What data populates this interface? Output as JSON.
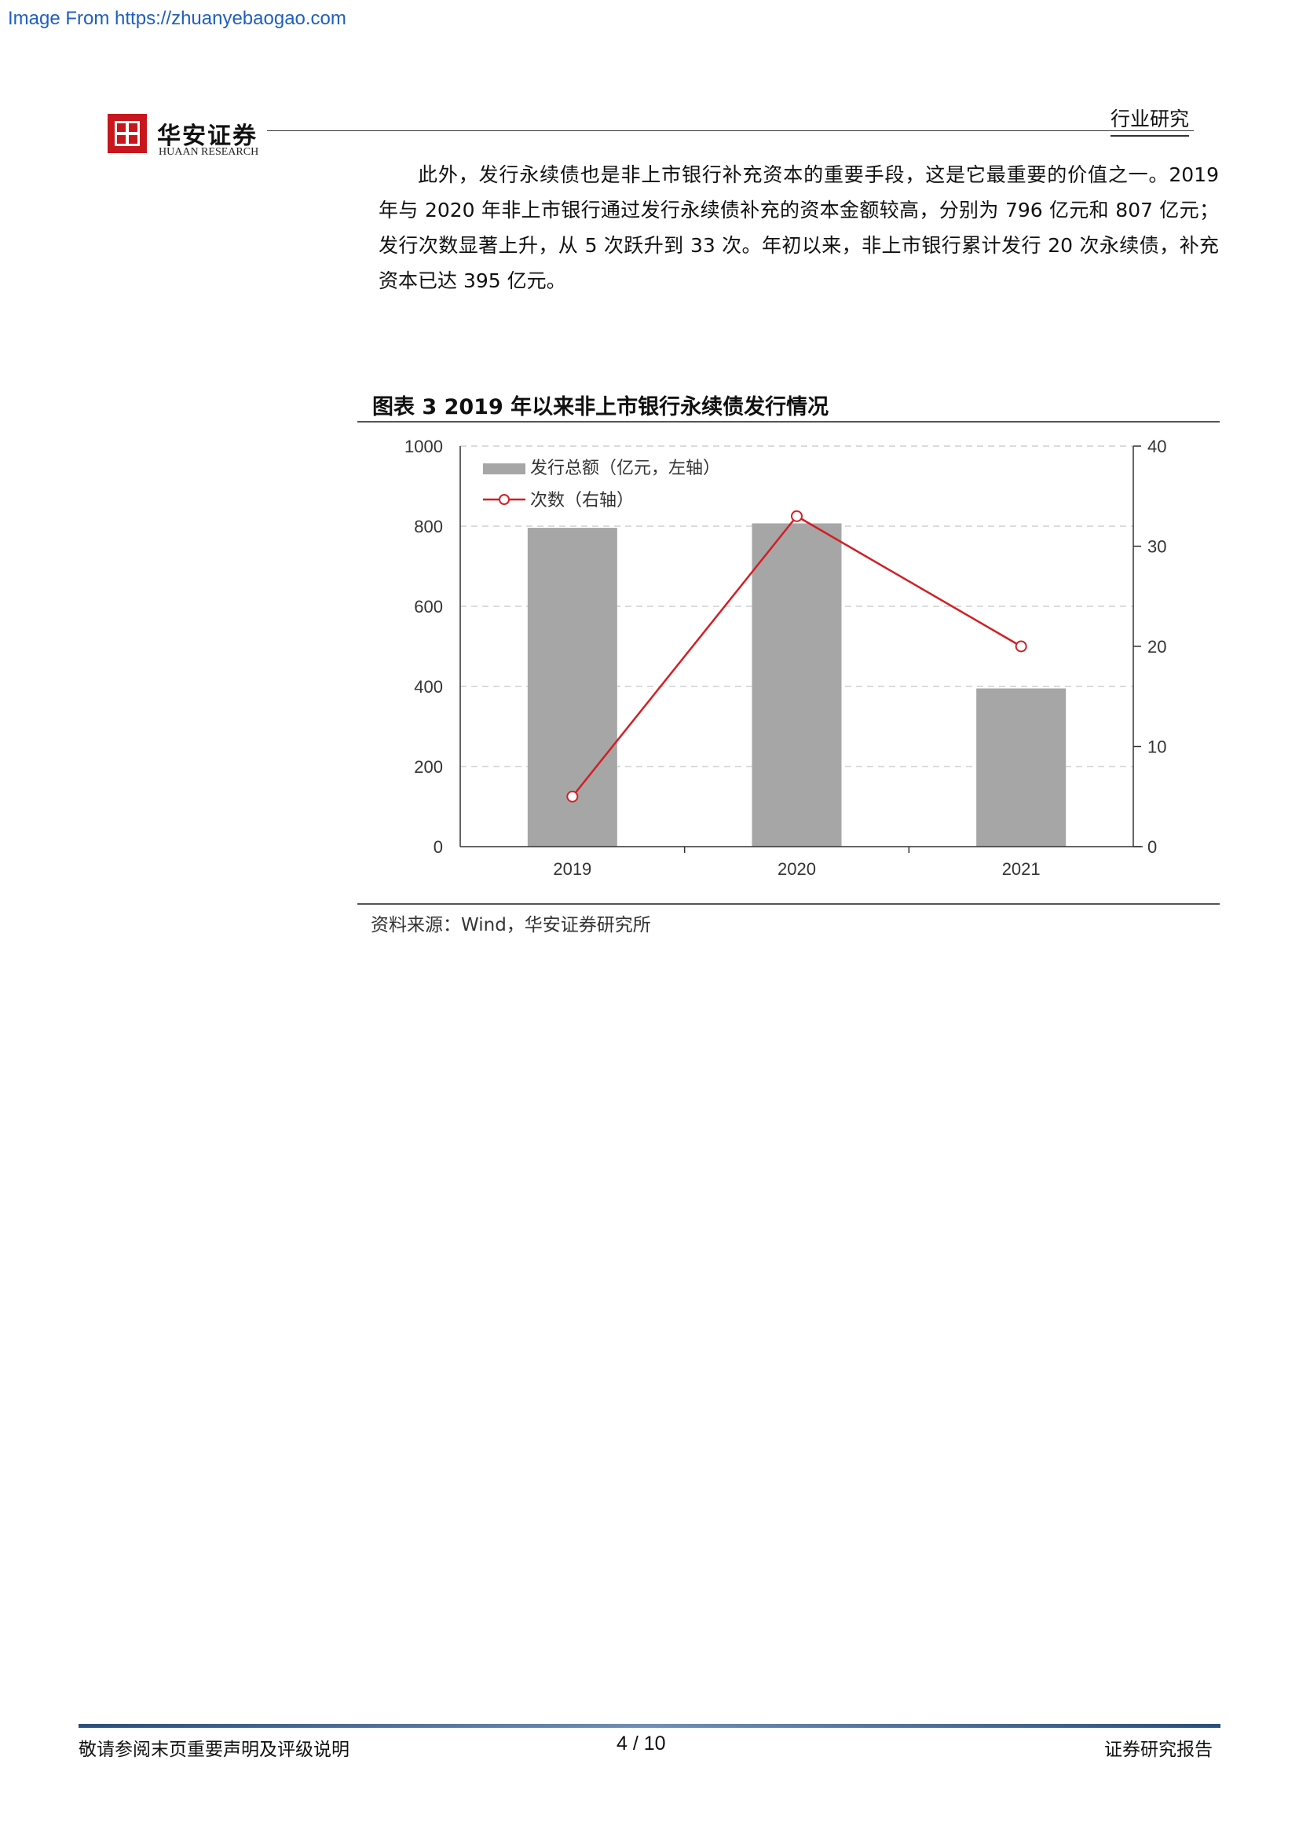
{
  "source_url": "Image From https://zhuanyebaogao.com",
  "header": {
    "brand_cn": "华安证券",
    "brand_en": "HUAAN RESEARCH",
    "section": "行业研究"
  },
  "body": {
    "paragraph": "此外，发行永续债也是非上市银行补充资本的重要手段，这是它最重要的价值之一。2019 年与 2020 年非上市银行通过发行永续债补充的资本金额较高，分别为 796 亿元和 807 亿元；发行次数显著上升，从 5 次跃升到 33 次。年初以来，非上市银行累计发行 20 次永续债，补充资本已达 395 亿元。"
  },
  "figure": {
    "title": "图表 3 2019 年以来非上市银行永续债发行情况",
    "source": "资料来源：Wind，华安证券研究所"
  },
  "chart_data": {
    "type": "bar",
    "categories": [
      "2019",
      "2020",
      "2021"
    ],
    "series": [
      {
        "name": "发行总额（亿元，左轴）",
        "type": "bar",
        "axis": "left",
        "values": [
          796,
          807,
          395
        ],
        "color": "#a6a6a6"
      },
      {
        "name": "次数（右轴）",
        "type": "line",
        "axis": "right",
        "values": [
          5,
          33,
          20
        ],
        "color": "#d21f24"
      }
    ],
    "y_left": {
      "min": 0,
      "max": 1000,
      "ticks": [
        "0",
        "200",
        "400",
        "600",
        "800",
        "1000"
      ]
    },
    "y_right": {
      "min": 0,
      "max": 40,
      "ticks": [
        "0",
        "10",
        "20",
        "30",
        "40"
      ]
    },
    "grid": true,
    "legend": "top-left"
  },
  "footer": {
    "disclaimer": "敬请参阅末页重要声明及评级说明",
    "page": "4 / 10",
    "report_type": "证券研究报告"
  }
}
